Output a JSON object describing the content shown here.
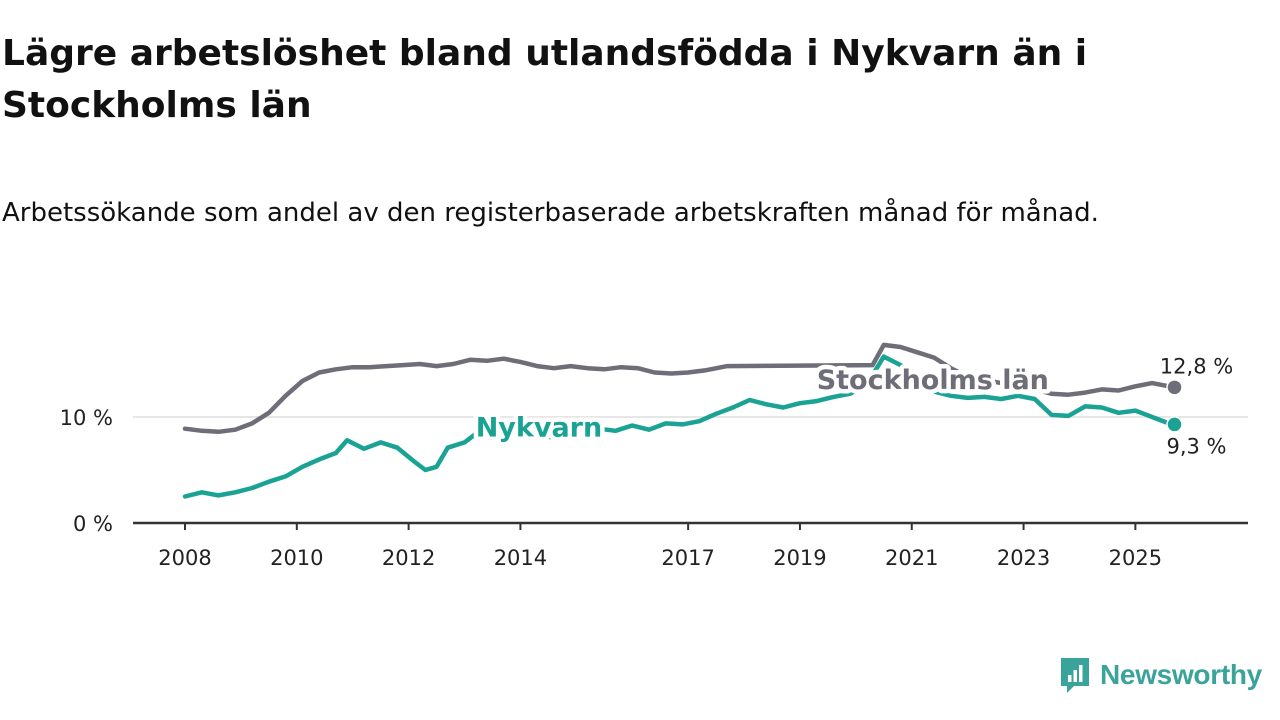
{
  "title": "Lägre arbetslöshet bland utlandsfödda i Nykvarn än i Stockholms län",
  "subtitle": "Arbetssökande som andel av den registerbaserade arbetskraften månad för månad.",
  "brand": {
    "name": "Newsworthy",
    "icon": "newsworthy-logo-icon",
    "color": "#3aa39a"
  },
  "colors": {
    "nykvarn": "#1aa394",
    "stockholm": "#6e6e78",
    "grid": "#dddddd",
    "axis": "#333333"
  },
  "chart_data": {
    "type": "line",
    "title": "Lägre arbetslöshet bland utlandsfödda i Nykvarn än i Stockholms län",
    "subtitle": "Arbetssökande som andel av den registerbaserade arbetskraften månad för månad.",
    "xlabel": "",
    "ylabel": "",
    "xlim": [
      2008,
      2026.6
    ],
    "ylim": [
      0,
      17.2
    ],
    "x_ticks": [
      2008,
      2010,
      2012,
      2014,
      2017,
      2019,
      2021,
      2023,
      2025
    ],
    "x_tick_labels": [
      "2008",
      "2010",
      "2012",
      "2014",
      "2017",
      "2019",
      "2021",
      "2023",
      "2025"
    ],
    "y_ticks": [
      0,
      10
    ],
    "y_tick_labels": [
      "0 %",
      "10 %"
    ],
    "grid": "horizontal",
    "series": [
      {
        "name": "Stockholms län",
        "color": "#6e6e78",
        "points": [
          [
            2008.0,
            8.9
          ],
          [
            2008.3,
            8.7
          ],
          [
            2008.6,
            8.6
          ],
          [
            2008.9,
            8.8
          ],
          [
            2009.2,
            9.4
          ],
          [
            2009.5,
            10.4
          ],
          [
            2009.8,
            12.0
          ],
          [
            2010.1,
            13.4
          ],
          [
            2010.4,
            14.2
          ],
          [
            2010.7,
            14.5
          ],
          [
            2011.0,
            14.7
          ],
          [
            2011.3,
            14.7
          ],
          [
            2011.6,
            14.8
          ],
          [
            2011.9,
            14.9
          ],
          [
            2012.2,
            15.0
          ],
          [
            2012.5,
            14.8
          ],
          [
            2012.8,
            15.0
          ],
          [
            2013.1,
            15.4
          ],
          [
            2013.4,
            15.3
          ],
          [
            2013.7,
            15.5
          ],
          [
            2014.0,
            15.2
          ],
          [
            2014.3,
            14.8
          ],
          [
            2014.6,
            14.6
          ],
          [
            2014.9,
            14.8
          ],
          [
            2015.2,
            14.6
          ],
          [
            2015.5,
            14.5
          ],
          [
            2015.8,
            14.7
          ],
          [
            2016.1,
            14.6
          ],
          [
            2016.4,
            14.2
          ],
          [
            2016.7,
            14.1
          ],
          [
            2017.0,
            14.2
          ],
          [
            2017.3,
            14.4
          ],
          [
            2017.7,
            14.8
          ],
          [
            2020.3,
            14.9
          ],
          [
            2020.5,
            16.8
          ],
          [
            2020.8,
            16.6
          ],
          [
            2021.1,
            16.1
          ],
          [
            2021.4,
            15.6
          ],
          [
            2021.7,
            14.6
          ],
          [
            2022.0,
            13.8
          ],
          [
            2022.3,
            13.5
          ],
          [
            2022.6,
            13.2
          ],
          [
            2022.9,
            12.9
          ],
          [
            2023.2,
            12.6
          ],
          [
            2023.5,
            12.2
          ],
          [
            2023.8,
            12.1
          ],
          [
            2024.1,
            12.3
          ],
          [
            2024.4,
            12.6
          ],
          [
            2024.7,
            12.5
          ],
          [
            2025.0,
            12.9
          ],
          [
            2025.3,
            13.2
          ],
          [
            2025.6,
            12.9
          ],
          [
            2025.7,
            12.8
          ]
        ],
        "end_label": "12,8 %"
      },
      {
        "name": "Nykvarn",
        "color": "#1aa394",
        "points": [
          [
            2008.0,
            2.5
          ],
          [
            2008.3,
            2.9
          ],
          [
            2008.6,
            2.6
          ],
          [
            2008.9,
            2.9
          ],
          [
            2009.2,
            3.3
          ],
          [
            2009.5,
            3.9
          ],
          [
            2009.8,
            4.4
          ],
          [
            2010.1,
            5.3
          ],
          [
            2010.4,
            6.0
          ],
          [
            2010.7,
            6.6
          ],
          [
            2010.9,
            7.8
          ],
          [
            2011.2,
            7.0
          ],
          [
            2011.5,
            7.6
          ],
          [
            2011.8,
            7.1
          ],
          [
            2012.1,
            5.8
          ],
          [
            2012.3,
            5.0
          ],
          [
            2012.5,
            5.3
          ],
          [
            2012.7,
            7.1
          ],
          [
            2013.0,
            7.6
          ],
          [
            2013.3,
            8.8
          ],
          [
            2013.6,
            9.0
          ],
          [
            2013.9,
            8.5
          ],
          [
            2014.2,
            8.6
          ],
          [
            2014.5,
            8.1
          ],
          [
            2014.8,
            8.3
          ],
          [
            2015.1,
            8.6
          ],
          [
            2015.4,
            8.9
          ],
          [
            2015.7,
            8.7
          ],
          [
            2016.0,
            9.2
          ],
          [
            2016.3,
            8.8
          ],
          [
            2016.6,
            9.4
          ],
          [
            2016.9,
            9.3
          ],
          [
            2017.2,
            9.6
          ],
          [
            2017.5,
            10.3
          ],
          [
            2017.8,
            10.9
          ],
          [
            2018.1,
            11.6
          ],
          [
            2018.4,
            11.2
          ],
          [
            2018.7,
            10.9
          ],
          [
            2019.0,
            11.3
          ],
          [
            2019.3,
            11.5
          ],
          [
            2019.6,
            11.9
          ],
          [
            2019.9,
            12.2
          ],
          [
            2020.2,
            13.1
          ],
          [
            2020.5,
            15.7
          ],
          [
            2020.8,
            14.9
          ],
          [
            2021.1,
            14.0
          ],
          [
            2021.4,
            12.4
          ],
          [
            2021.7,
            12.0
          ],
          [
            2022.0,
            11.8
          ],
          [
            2022.3,
            11.9
          ],
          [
            2022.6,
            11.7
          ],
          [
            2022.9,
            12.0
          ],
          [
            2023.2,
            11.7
          ],
          [
            2023.5,
            10.2
          ],
          [
            2023.8,
            10.1
          ],
          [
            2024.1,
            11.0
          ],
          [
            2024.4,
            10.9
          ],
          [
            2024.7,
            10.4
          ],
          [
            2025.0,
            10.6
          ],
          [
            2025.3,
            10.0
          ],
          [
            2025.6,
            9.4
          ],
          [
            2025.7,
            9.3
          ]
        ],
        "end_label": "9,3 %"
      }
    ],
    "annotations": [
      {
        "series": "Stockholms län",
        "text": "Stockholms län",
        "x": 2019.3,
        "y": 13.6
      },
      {
        "series": "Nykvarn",
        "text": "Nykvarn",
        "x": 2013.2,
        "y": 9.1
      }
    ]
  }
}
